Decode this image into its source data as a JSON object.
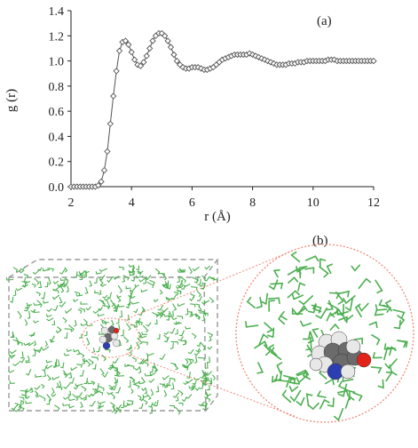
{
  "chart_data": {
    "type": "line",
    "title": "",
    "panel_label": "(a)",
    "xlabel": "r (Å)",
    "ylabel": "g (r)",
    "xlim": [
      2,
      12
    ],
    "ylim": [
      0,
      1.4
    ],
    "xticks": [
      "2",
      "4",
      "6",
      "8",
      "10",
      "12"
    ],
    "yticks": [
      "0.0",
      "0.2",
      "0.4",
      "0.6",
      "0.8",
      "1.0",
      "1.2",
      "1.4"
    ],
    "grid": false,
    "legend": "none",
    "marker": "open-diamond",
    "series": [
      {
        "x": [
          2.0,
          2.1,
          2.2,
          2.3,
          2.4,
          2.5,
          2.6,
          2.7,
          2.8,
          2.9,
          3.0,
          3.1,
          3.2,
          3.3,
          3.4,
          3.5,
          3.6,
          3.7,
          3.8,
          3.9,
          4.0,
          4.1,
          4.2,
          4.3,
          4.4,
          4.5,
          4.6,
          4.7,
          4.8,
          4.9,
          5.0,
          5.1,
          5.2,
          5.3,
          5.4,
          5.5,
          5.6,
          5.7,
          5.8,
          5.9,
          6.0,
          6.1,
          6.2,
          6.3,
          6.4,
          6.5,
          6.6,
          6.7,
          6.8,
          6.9,
          7.0,
          7.1,
          7.2,
          7.3,
          7.4,
          7.5,
          7.6,
          7.7,
          7.8,
          7.9,
          8.0,
          8.1,
          8.2,
          8.3,
          8.4,
          8.5,
          8.6,
          8.7,
          8.8,
          8.9,
          9.0,
          9.1,
          9.2,
          9.3,
          9.4,
          9.5,
          9.6,
          9.7,
          9.8,
          9.9,
          10.0,
          10.1,
          10.2,
          10.3,
          10.4,
          10.5,
          10.6,
          10.7,
          10.8,
          10.9,
          11.0,
          11.1,
          11.2,
          11.3,
          11.4,
          11.5,
          11.6,
          11.7,
          11.8,
          11.9,
          12.0
        ],
        "y": [
          0.0,
          0.0,
          0.0,
          0.0,
          0.0,
          0.0,
          0.0,
          0.0,
          0.0,
          0.01,
          0.04,
          0.13,
          0.28,
          0.5,
          0.72,
          0.92,
          1.08,
          1.15,
          1.16,
          1.13,
          1.07,
          1.01,
          0.97,
          0.96,
          0.99,
          1.04,
          1.1,
          1.16,
          1.2,
          1.22,
          1.22,
          1.2,
          1.16,
          1.11,
          1.05,
          1.0,
          0.97,
          0.95,
          0.94,
          0.94,
          0.95,
          0.95,
          0.95,
          0.94,
          0.93,
          0.93,
          0.94,
          0.95,
          0.97,
          0.99,
          1.01,
          1.02,
          1.03,
          1.04,
          1.05,
          1.05,
          1.05,
          1.05,
          1.05,
          1.06,
          1.05,
          1.04,
          1.03,
          1.02,
          1.01,
          1.0,
          0.99,
          0.98,
          0.97,
          0.97,
          0.97,
          0.97,
          0.98,
          0.98,
          0.98,
          0.99,
          0.99,
          0.99,
          1.0,
          1.0,
          1.0,
          1.0,
          1.0,
          1.0,
          1.0,
          1.01,
          1.01,
          1.01,
          1.0,
          1.0,
          1.0,
          1.0,
          1.0,
          1.0,
          1.0,
          1.0,
          1.0,
          1.0,
          1.0,
          1.0,
          1.0
        ]
      }
    ]
  },
  "illustration": {
    "panel_label": "(b)",
    "colors": {
      "solvent": "#4caf50",
      "box_edge": "#9a9a9a",
      "zoom_circle": "#f08a7a",
      "oxygen": "#e2231a",
      "nitrogen": "#2d3fb0",
      "carbon": "#6b6b6b",
      "hydrogen": "#e8e8e8"
    }
  }
}
